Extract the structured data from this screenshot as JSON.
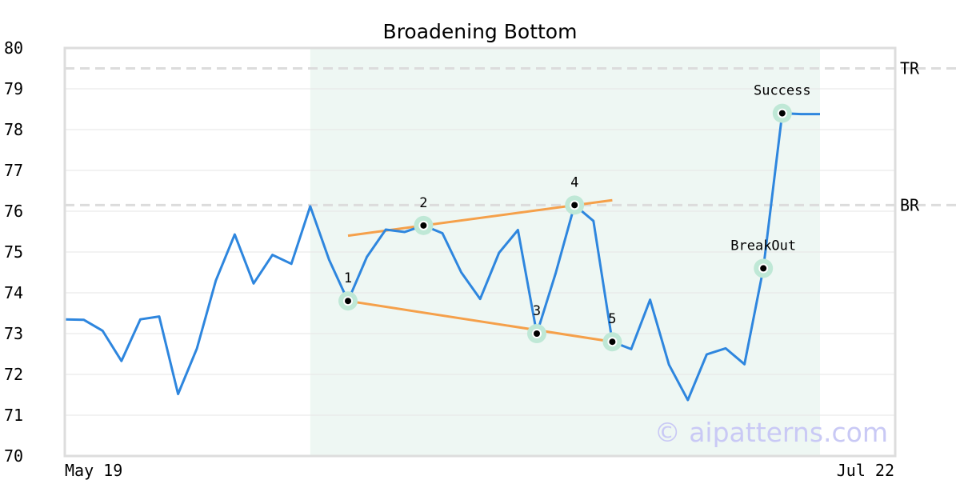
{
  "chart_data": {
    "type": "line",
    "title": "Broadening Bottom",
    "ylim": [
      70,
      80
    ],
    "y_ticks": [
      70,
      71,
      72,
      73,
      74,
      75,
      76,
      77,
      78,
      79,
      80
    ],
    "x_labels": {
      "start": "May 19",
      "end": "Jul 22"
    },
    "grid": true,
    "series": [
      {
        "color": "#2e86de",
        "values": [
          73.35,
          73.34,
          73.07,
          72.33,
          73.35,
          73.42,
          71.52,
          72.64,
          74.3,
          75.43,
          74.23,
          74.93,
          74.71,
          76.12,
          74.81,
          73.8,
          74.88,
          75.55,
          75.49,
          75.65,
          75.46,
          74.5,
          73.85,
          74.98,
          75.54,
          73.0,
          74.48,
          76.15,
          75.76,
          72.8,
          72.62,
          73.83,
          72.24,
          71.37,
          72.49,
          72.64,
          72.25,
          74.6,
          78.4,
          78.38,
          78.38
        ]
      }
    ],
    "pattern_region": {
      "start_index": 13,
      "end_index": 40,
      "fill": "#eef7f3"
    },
    "reference_lines": [
      {
        "label": "TR",
        "value": 79.5
      },
      {
        "label": "BR",
        "value": 76.15
      }
    ],
    "trendlines": [
      {
        "color": "#f5a04a",
        "from": {
          "index": 15,
          "value": 75.4
        },
        "to": {
          "index": 29,
          "value": 76.27
        }
      },
      {
        "color": "#f5a04a",
        "from": {
          "index": 15,
          "value": 73.8
        },
        "to": {
          "index": 29,
          "value": 72.8
        }
      }
    ],
    "points": [
      {
        "label": "1",
        "index": 15,
        "value": 73.8,
        "label_pos": "above"
      },
      {
        "label": "2",
        "index": 19,
        "value": 75.65,
        "label_pos": "above"
      },
      {
        "label": "3",
        "index": 25,
        "value": 73.0,
        "label_pos": "above"
      },
      {
        "label": "4",
        "index": 27,
        "value": 76.15,
        "label_pos": "above"
      },
      {
        "label": "5",
        "index": 29,
        "value": 72.8,
        "label_pos": "above"
      },
      {
        "label": "BreakOut",
        "index": 37,
        "value": 74.6,
        "label_pos": "above"
      },
      {
        "label": "Success",
        "index": 38,
        "value": 78.4,
        "label_pos": "above"
      }
    ],
    "watermark": "© aipatterns.com"
  }
}
